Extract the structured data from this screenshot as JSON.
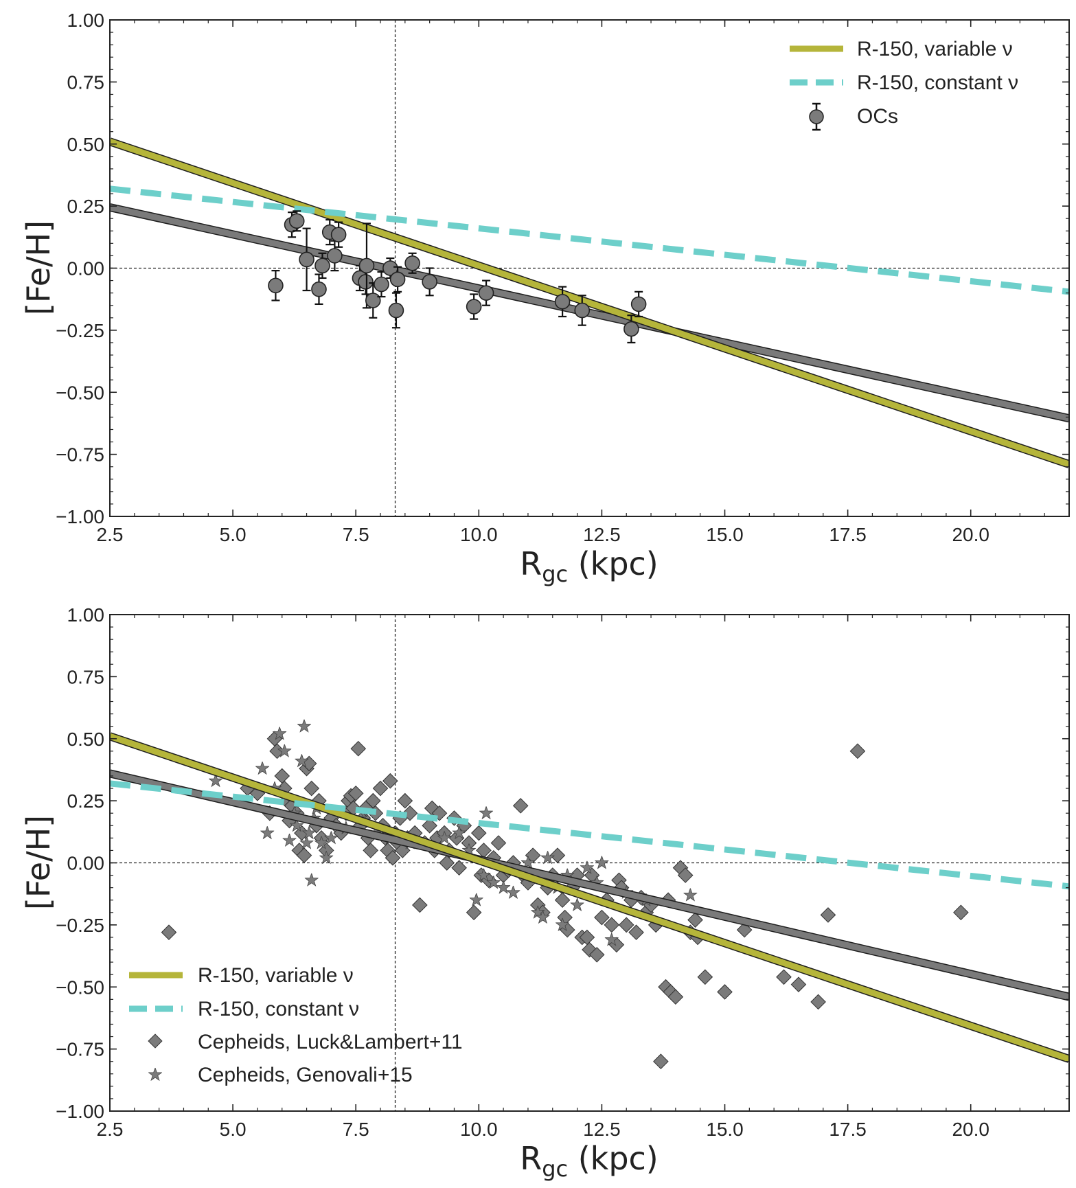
{
  "figure": {
    "colors": {
      "variable": "#b5b53a",
      "constant": "#6dcfca",
      "fit": "#7a7a7a",
      "marker": "#7b7b7b",
      "axis": "#222222"
    }
  },
  "chart_data": [
    {
      "type": "scatter",
      "title": "",
      "xlabel_main": "R",
      "xlabel_sub": "gc",
      "xlabel_unit": " (kpc)",
      "ylabel": "[Fe/H]",
      "xlim": [
        2.5,
        22.0
      ],
      "ylim": [
        -1.0,
        1.0
      ],
      "xticks": [
        "2.5",
        "5.0",
        "7.5",
        "10.0",
        "12.5",
        "15.0",
        "17.5",
        "20.0"
      ],
      "yticks": [
        "1.00",
        "0.75",
        "0.50",
        "0.25",
        "0.00",
        "−0.25",
        "−0.50",
        "−0.75",
        "−1.00"
      ],
      "reference_lines": {
        "x": 8.3,
        "y": 0.0
      },
      "lines": {
        "variable": {
          "label": "R-150, variable ν",
          "x": [
            2.5,
            22.0
          ],
          "y": [
            0.51,
            -0.79
          ]
        },
        "constant": {
          "label": "R-150, constant ν",
          "x": [
            2.5,
            22.0
          ],
          "y": [
            0.32,
            -0.095
          ]
        },
        "fit": {
          "x": [
            2.5,
            22.0
          ],
          "y": [
            0.245,
            -0.605
          ]
        }
      },
      "legend": {
        "position": "top-right",
        "entries": [
          "R-150, variable ν",
          "R-150, constant ν",
          "OCs"
        ]
      },
      "oc_series": {
        "label": "OCs",
        "points": [
          {
            "x": 5.87,
            "y": -0.07,
            "err": 0.06
          },
          {
            "x": 6.2,
            "y": 0.175,
            "err": 0.05
          },
          {
            "x": 6.3,
            "y": 0.19,
            "err": 0.04
          },
          {
            "x": 6.5,
            "y": 0.035,
            "err": 0.125
          },
          {
            "x": 6.75,
            "y": -0.085,
            "err": 0.06
          },
          {
            "x": 6.82,
            "y": 0.01,
            "err": 0.05
          },
          {
            "x": 6.97,
            "y": 0.145,
            "err": 0.05
          },
          {
            "x": 7.07,
            "y": 0.05,
            "err": 0.06
          },
          {
            "x": 7.15,
            "y": 0.135,
            "err": 0.05
          },
          {
            "x": 7.58,
            "y": -0.04,
            "err": 0.05
          },
          {
            "x": 7.7,
            "y": -0.055,
            "err": 0.05
          },
          {
            "x": 7.72,
            "y": 0.01,
            "err": 0.17
          },
          {
            "x": 7.85,
            "y": -0.13,
            "err": 0.07
          },
          {
            "x": 8.02,
            "y": -0.065,
            "err": 0.05
          },
          {
            "x": 8.2,
            "y": 0.0,
            "err": 0.04
          },
          {
            "x": 8.32,
            "y": -0.17,
            "err": 0.07
          },
          {
            "x": 8.35,
            "y": -0.045,
            "err": 0.05
          },
          {
            "x": 8.65,
            "y": 0.02,
            "err": 0.04
          },
          {
            "x": 9.0,
            "y": -0.055,
            "err": 0.055
          },
          {
            "x": 9.9,
            "y": -0.155,
            "err": 0.05
          },
          {
            "x": 10.15,
            "y": -0.1,
            "err": 0.05
          },
          {
            "x": 11.7,
            "y": -0.135,
            "err": 0.06
          },
          {
            "x": 12.1,
            "y": -0.17,
            "err": 0.06
          },
          {
            "x": 13.1,
            "y": -0.245,
            "err": 0.055
          },
          {
            "x": 13.25,
            "y": -0.145,
            "err": 0.05
          }
        ]
      }
    },
    {
      "type": "scatter",
      "title": "",
      "xlabel_main": "R",
      "xlabel_sub": "gc",
      "xlabel_unit": " (kpc)",
      "ylabel": "[Fe/H]",
      "xlim": [
        2.5,
        22.0
      ],
      "ylim": [
        -1.0,
        1.0
      ],
      "xticks": [
        "2.5",
        "5.0",
        "7.5",
        "10.0",
        "12.5",
        "15.0",
        "17.5",
        "20.0"
      ],
      "yticks": [
        "1.00",
        "0.75",
        "0.50",
        "0.25",
        "0.00",
        "−0.25",
        "−0.50",
        "−0.75",
        "−1.00"
      ],
      "reference_lines": {
        "x": 8.3,
        "y": 0.0
      },
      "lines": {
        "variable": {
          "label": "R-150, variable ν",
          "x": [
            2.5,
            22.0
          ],
          "y": [
            0.51,
            -0.79
          ]
        },
        "constant": {
          "label": "R-150, constant ν",
          "x": [
            2.5,
            22.0
          ],
          "y": [
            0.32,
            -0.095
          ]
        },
        "fit": {
          "x": [
            2.5,
            22.0
          ],
          "y": [
            0.36,
            -0.54
          ]
        }
      },
      "legend": {
        "position": "bottom-left",
        "entries": [
          "R-150, variable ν",
          "R-150, constant ν",
          "Cepheids, Luck&Lambert+11",
          "Cepheids, Genovali+15"
        ]
      },
      "diamond_series": {
        "label": "Cepheids, Luck&Lambert+11",
        "points": [
          [
            3.7,
            -0.28
          ],
          [
            5.3,
            0.3
          ],
          [
            5.5,
            0.28
          ],
          [
            5.75,
            0.2
          ],
          [
            5.85,
            0.5
          ],
          [
            5.9,
            0.45
          ],
          [
            6.0,
            0.35
          ],
          [
            6.05,
            0.3
          ],
          [
            6.1,
            0.25
          ],
          [
            6.15,
            0.17
          ],
          [
            6.2,
            0.23
          ],
          [
            6.3,
            0.2
          ],
          [
            6.35,
            0.05
          ],
          [
            6.4,
            0.12
          ],
          [
            6.45,
            0.03
          ],
          [
            6.5,
            0.38
          ],
          [
            6.55,
            0.4
          ],
          [
            6.6,
            0.3
          ],
          [
            6.7,
            0.15
          ],
          [
            6.75,
            0.25
          ],
          [
            6.8,
            0.1
          ],
          [
            6.9,
            0.05
          ],
          [
            7.0,
            0.18
          ],
          [
            7.1,
            0.15
          ],
          [
            7.2,
            0.12
          ],
          [
            7.3,
            0.2
          ],
          [
            7.35,
            0.25
          ],
          [
            7.4,
            0.27
          ],
          [
            7.45,
            0.22
          ],
          [
            7.5,
            0.28
          ],
          [
            7.55,
            0.46
          ],
          [
            7.6,
            0.15
          ],
          [
            7.65,
            0.18
          ],
          [
            7.7,
            0.22
          ],
          [
            7.75,
            0.1
          ],
          [
            7.8,
            0.05
          ],
          [
            7.85,
            0.25
          ],
          [
            7.9,
            0.2
          ],
          [
            8.0,
            0.3
          ],
          [
            8.05,
            0.15
          ],
          [
            8.1,
            0.1
          ],
          [
            8.15,
            0.05
          ],
          [
            8.2,
            0.33
          ],
          [
            8.25,
            0.02
          ],
          [
            8.3,
            0.12
          ],
          [
            8.35,
            0.08
          ],
          [
            8.4,
            0.18
          ],
          [
            8.45,
            0.05
          ],
          [
            8.5,
            0.25
          ],
          [
            8.55,
            0.1
          ],
          [
            8.6,
            0.2
          ],
          [
            8.7,
            0.12
          ],
          [
            8.8,
            -0.17
          ],
          [
            8.9,
            0.08
          ],
          [
            9.0,
            0.15
          ],
          [
            9.05,
            0.22
          ],
          [
            9.1,
            0.05
          ],
          [
            9.15,
            0.1
          ],
          [
            9.2,
            0.2
          ],
          [
            9.3,
            0.12
          ],
          [
            9.35,
            0.0
          ],
          [
            9.4,
            0.05
          ],
          [
            9.5,
            0.18
          ],
          [
            9.55,
            0.1
          ],
          [
            9.6,
            -0.02
          ],
          [
            9.7,
            0.15
          ],
          [
            9.8,
            0.08
          ],
          [
            9.9,
            -0.2
          ],
          [
            10.0,
            0.12
          ],
          [
            10.05,
            -0.05
          ],
          [
            10.1,
            0.05
          ],
          [
            10.2,
            -0.07
          ],
          [
            10.3,
            0.02
          ],
          [
            10.4,
            0.08
          ],
          [
            10.5,
            -0.05
          ],
          [
            10.6,
            -0.03
          ],
          [
            10.7,
            0.0
          ],
          [
            10.85,
            0.23
          ],
          [
            10.9,
            -0.05
          ],
          [
            11.0,
            -0.08
          ],
          [
            11.1,
            0.03
          ],
          [
            11.2,
            -0.17
          ],
          [
            11.3,
            -0.2
          ],
          [
            11.4,
            -0.1
          ],
          [
            11.5,
            -0.05
          ],
          [
            11.6,
            0.03
          ],
          [
            11.7,
            -0.15
          ],
          [
            11.75,
            -0.22
          ],
          [
            11.8,
            -0.27
          ],
          [
            11.9,
            -0.1
          ],
          [
            12.0,
            -0.05
          ],
          [
            12.1,
            -0.3
          ],
          [
            12.2,
            -0.3
          ],
          [
            12.25,
            -0.35
          ],
          [
            12.3,
            -0.05
          ],
          [
            12.4,
            -0.37
          ],
          [
            12.5,
            -0.22
          ],
          [
            12.6,
            -0.15
          ],
          [
            12.7,
            -0.25
          ],
          [
            12.8,
            -0.33
          ],
          [
            12.85,
            -0.07
          ],
          [
            12.9,
            -0.1
          ],
          [
            13.0,
            -0.25
          ],
          [
            13.1,
            -0.15
          ],
          [
            13.2,
            -0.28
          ],
          [
            13.3,
            -0.14
          ],
          [
            13.4,
            -0.2
          ],
          [
            13.5,
            -0.17
          ],
          [
            13.6,
            -0.25
          ],
          [
            13.7,
            -0.8
          ],
          [
            13.8,
            -0.5
          ],
          [
            13.85,
            -0.15
          ],
          [
            13.9,
            -0.52
          ],
          [
            14.0,
            -0.54
          ],
          [
            14.1,
            -0.02
          ],
          [
            14.2,
            -0.05
          ],
          [
            14.3,
            -0.28
          ],
          [
            14.4,
            -0.23
          ],
          [
            14.45,
            -0.3
          ],
          [
            14.6,
            -0.46
          ],
          [
            15.0,
            -0.52
          ],
          [
            15.4,
            -0.27
          ],
          [
            16.2,
            -0.46
          ],
          [
            16.5,
            -0.49
          ],
          [
            16.9,
            -0.56
          ],
          [
            17.1,
            -0.21
          ],
          [
            17.7,
            0.45
          ],
          [
            19.8,
            -0.2
          ]
        ]
      },
      "star_series": {
        "label": "Cepheids, Genovali+15",
        "points": [
          [
            4.65,
            0.33
          ],
          [
            5.6,
            0.38
          ],
          [
            5.7,
            0.12
          ],
          [
            5.85,
            0.3
          ],
          [
            5.95,
            0.52
          ],
          [
            6.05,
            0.45
          ],
          [
            6.15,
            0.09
          ],
          [
            6.25,
            0.2
          ],
          [
            6.3,
            0.15
          ],
          [
            6.4,
            0.41
          ],
          [
            6.45,
            0.55
          ],
          [
            6.5,
            0.08
          ],
          [
            6.55,
            0.12
          ],
          [
            6.6,
            -0.07
          ],
          [
            6.65,
            0.18
          ],
          [
            6.7,
            0.22
          ],
          [
            6.8,
            0.08
          ],
          [
            6.9,
            0.02
          ],
          [
            7.0,
            0.1
          ],
          [
            7.3,
            0.14
          ],
          [
            7.6,
            0.18
          ],
          [
            7.9,
            0.12
          ],
          [
            8.2,
            0.1
          ],
          [
            8.6,
            0.08
          ],
          [
            9.3,
            0.1
          ],
          [
            9.6,
            0.12
          ],
          [
            9.8,
            0.05
          ],
          [
            9.95,
            -0.15
          ],
          [
            10.1,
            -0.05
          ],
          [
            10.15,
            0.2
          ],
          [
            10.3,
            -0.08
          ],
          [
            10.5,
            -0.1
          ],
          [
            10.7,
            -0.12
          ],
          [
            11.0,
            0.0
          ],
          [
            11.2,
            -0.2
          ],
          [
            11.3,
            -0.22
          ],
          [
            11.4,
            0.02
          ],
          [
            11.6,
            -0.1
          ],
          [
            11.7,
            -0.25
          ],
          [
            11.8,
            -0.05
          ],
          [
            12.0,
            -0.17
          ],
          [
            12.2,
            -0.02
          ],
          [
            12.4,
            -0.08
          ],
          [
            12.5,
            0.0
          ],
          [
            12.7,
            -0.31
          ],
          [
            13.0,
            -0.12
          ],
          [
            13.4,
            -0.15
          ],
          [
            14.3,
            -0.13
          ]
        ]
      }
    }
  ]
}
